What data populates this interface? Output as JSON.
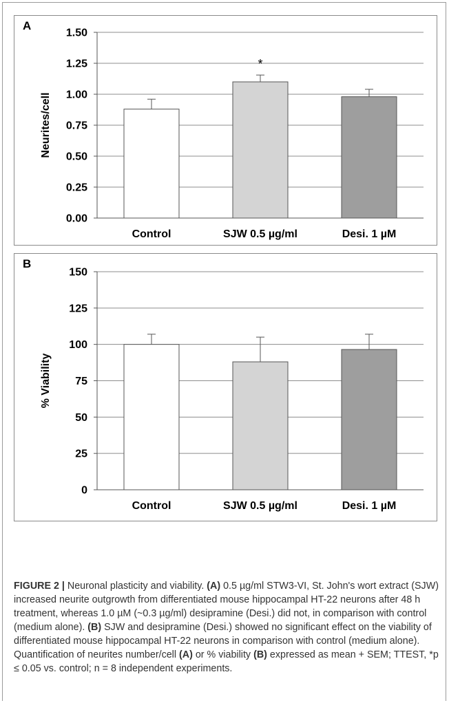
{
  "chart_data": [
    {
      "type": "bar",
      "panel_label": "A",
      "categories": [
        "Control",
        "SJW 0.5 µg/ml",
        "Desi. 1 µM"
      ],
      "values": [
        0.88,
        1.1,
        0.98
      ],
      "errors": [
        0.08,
        0.055,
        0.06
      ],
      "bar_colors": [
        "#ffffff",
        "#d4d4d4",
        "#9e9e9e"
      ],
      "annotations": [
        "",
        "*",
        ""
      ],
      "ylabel": "Neurites/cell",
      "ylim": [
        0,
        1.5
      ],
      "yticks": [
        "0.00",
        "0.25",
        "0.50",
        "0.75",
        "1.00",
        "1.25",
        "1.50"
      ],
      "grid": true
    },
    {
      "type": "bar",
      "panel_label": "B",
      "categories": [
        "Control",
        "SJW 0.5 µg/ml",
        "Desi. 1 µM"
      ],
      "values": [
        100,
        88,
        96.5
      ],
      "errors": [
        7,
        17,
        10.5
      ],
      "bar_colors": [
        "#ffffff",
        "#d4d4d4",
        "#9e9e9e"
      ],
      "annotations": [
        "",
        "",
        ""
      ],
      "ylabel": "% Viability",
      "ylim": [
        0,
        150
      ],
      "yticks": [
        "0",
        "25",
        "50",
        "75",
        "100",
        "125",
        "150"
      ],
      "grid": true
    }
  ],
  "caption": {
    "figure_label": "FIGURE 2 |",
    "title": " Neuronal plasticity and viability. ",
    "a_label": "(A)",
    "a_text": " 0.5 µg/ml STW3-VI, St. John's wort extract (SJW) increased neurite outgrowth from differentiated mouse hippocampal HT-22 neurons after 48 h treatment, whereas 1.0 µM (~0.3 µg/ml) desipramine (Desi.) did not, in comparison with control (medium alone). ",
    "b_label": "(B)",
    "b_text": " SJW and desipramine (Desi.) showed no significant effect on the viability of differentiated mouse hippocampal HT-22 neurons in comparison with control (medium alone). Quantification of neurites number/cell ",
    "a_ref": "(A)",
    "mid_text": " or % viability ",
    "b_ref": "(B)",
    "end_text": " expressed as mean + SEM; TTEST, *p ≤ 0.05 vs. control; n = 8 independent experiments."
  }
}
